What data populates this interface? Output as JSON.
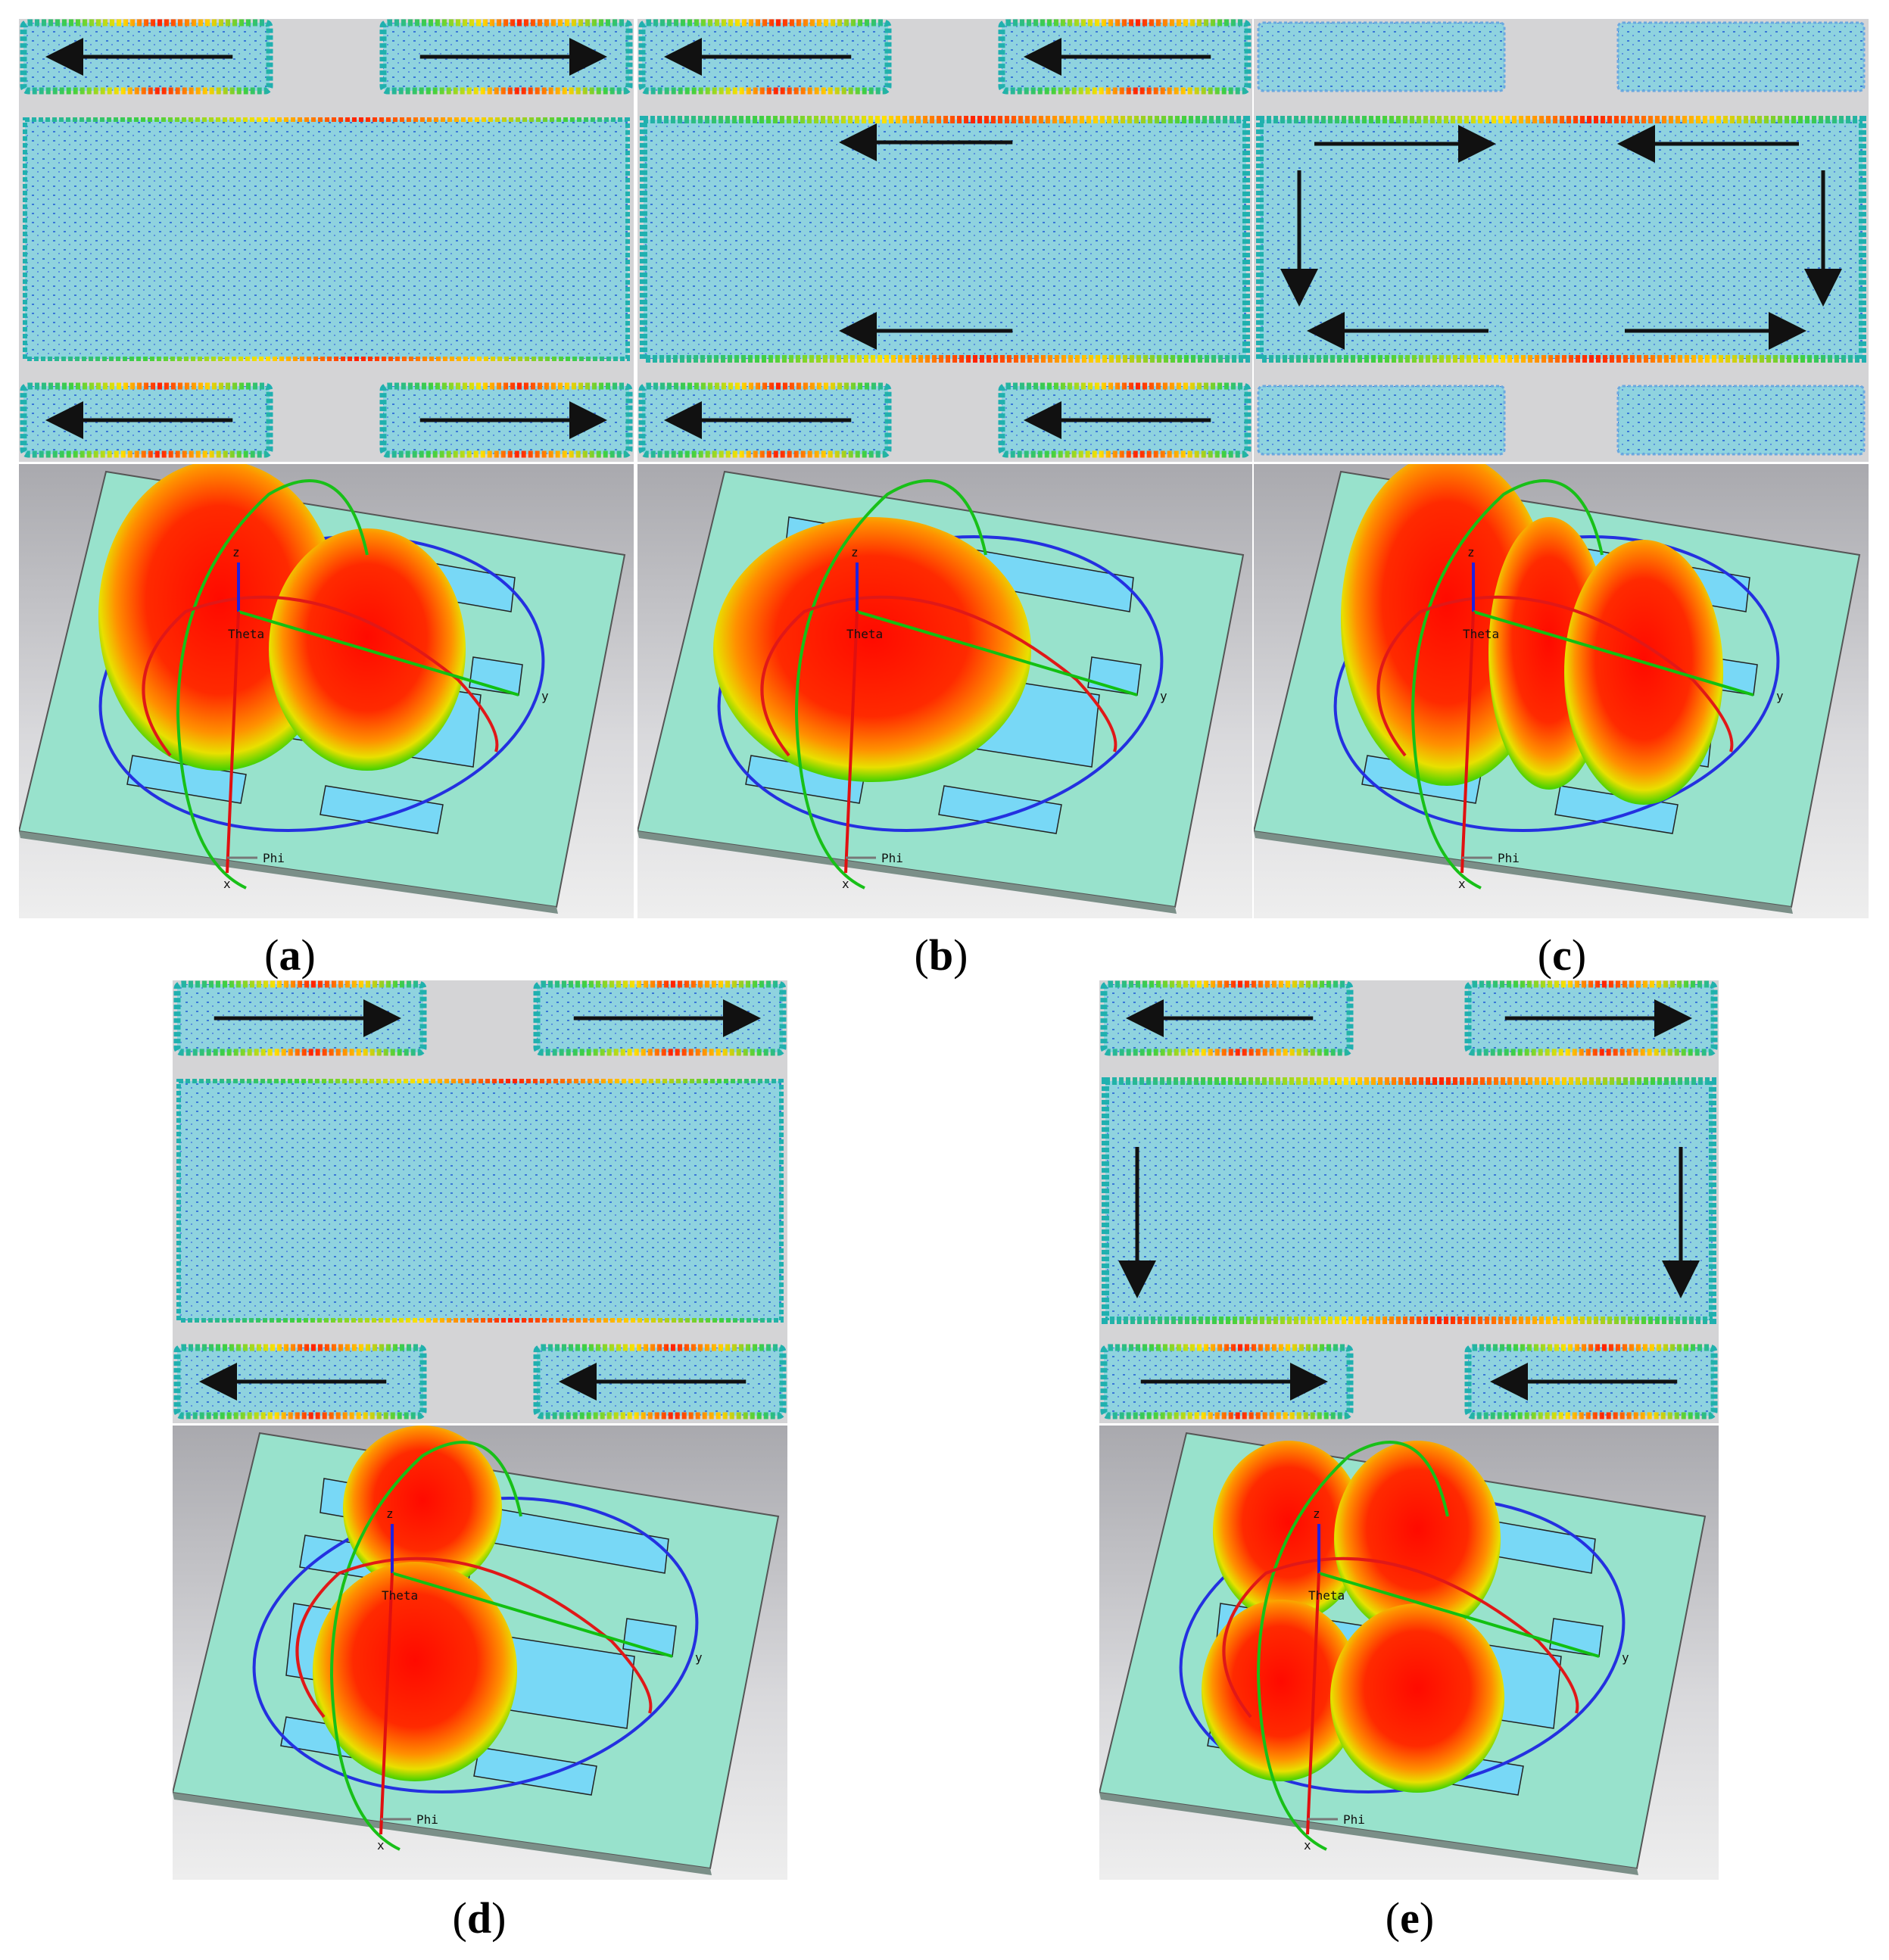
{
  "panels": [
    {
      "id": "a",
      "caption_letter": "a",
      "patches": {
        "tl": "left",
        "tr": "right",
        "bl": "left",
        "br": "right"
      },
      "main_arrows": [],
      "pattern": "two-lobe-side",
      "axis_labels": {
        "z": "z",
        "theta": "Theta",
        "y": "y",
        "phi": "Phi",
        "x": "x"
      }
    },
    {
      "id": "b",
      "caption_letter": "b",
      "patches": {
        "tl": "left",
        "tr": "left",
        "bl": "left",
        "br": "left"
      },
      "main_arrows": [
        "top-left",
        "bottom-left"
      ],
      "pattern": "broadside-single",
      "axis_labels": {
        "z": "z",
        "theta": "Theta",
        "y": "y",
        "phi": "Phi",
        "x": "x"
      }
    },
    {
      "id": "c",
      "caption_letter": "c",
      "patches": {
        "tl": "none",
        "tr": "none",
        "bl": "none",
        "br": "none"
      },
      "main_arrows": [
        "loop"
      ],
      "pattern": "three-lobe",
      "axis_labels": {
        "z": "z",
        "theta": "Theta",
        "y": "y",
        "phi": "Phi",
        "x": "x"
      }
    },
    {
      "id": "d",
      "caption_letter": "d",
      "patches": {
        "tl": "right",
        "tr": "right",
        "bl": "left",
        "br": "left"
      },
      "main_arrows": [],
      "pattern": "two-lobe-front",
      "axis_labels": {
        "z": "z",
        "theta": "Theta",
        "y": "y",
        "phi": "Phi",
        "x": "x"
      }
    },
    {
      "id": "e",
      "caption_letter": "e",
      "patches": {
        "tl": "left",
        "tr": "right",
        "bl": "right",
        "br": "left"
      },
      "main_arrows": [
        "down-sides"
      ],
      "pattern": "four-lobe",
      "axis_labels": {
        "z": "z",
        "theta": "Theta",
        "y": "y",
        "phi": "Phi",
        "x": "x"
      }
    }
  ],
  "colors": {
    "patch_fill": "#8fd3df",
    "ground": "#98e2cc",
    "sim_bg": "#d6d6d6",
    "lobe_red": "#ff1a00",
    "lobe_green": "#3ad000"
  }
}
